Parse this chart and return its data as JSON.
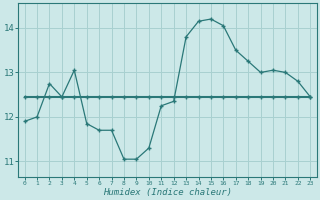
{
  "xlabel": "Humidex (Indice chaleur)",
  "background_color": "#cce8e8",
  "grid_color": "#a8d0d0",
  "line_color": "#2a7878",
  "xlim": [
    -0.5,
    23.5
  ],
  "ylim": [
    10.65,
    14.55
  ],
  "yticks": [
    11,
    12,
    13,
    14
  ],
  "xticks": [
    0,
    1,
    2,
    3,
    4,
    5,
    6,
    7,
    8,
    9,
    10,
    11,
    12,
    13,
    14,
    15,
    16,
    17,
    18,
    19,
    20,
    21,
    22,
    23
  ],
  "series1_x": [
    0,
    1,
    2,
    3,
    4,
    5,
    6,
    7,
    8,
    9,
    10,
    11,
    12,
    13,
    14,
    15,
    16,
    17,
    18,
    19,
    20,
    21,
    22,
    23
  ],
  "series1_y": [
    11.9,
    12.0,
    12.75,
    12.45,
    13.05,
    11.85,
    11.7,
    11.7,
    11.05,
    11.05,
    11.3,
    12.25,
    12.35,
    13.8,
    14.15,
    14.2,
    14.05,
    13.5,
    13.25,
    13.0,
    13.05,
    13.0,
    12.8,
    12.45
  ],
  "series2_x": [
    0,
    1,
    2,
    3,
    4,
    5,
    6,
    7,
    8,
    9,
    10,
    11,
    12,
    13,
    14,
    15,
    16,
    17,
    18,
    19,
    20,
    21,
    22,
    23
  ],
  "series2_y": [
    12.45,
    12.45,
    12.45,
    12.45,
    12.45,
    12.45,
    12.45,
    12.45,
    12.45,
    12.45,
    12.45,
    12.45,
    12.45,
    12.45,
    12.45,
    12.45,
    12.45,
    12.45,
    12.45,
    12.45,
    12.45,
    12.45,
    12.45,
    12.45
  ]
}
